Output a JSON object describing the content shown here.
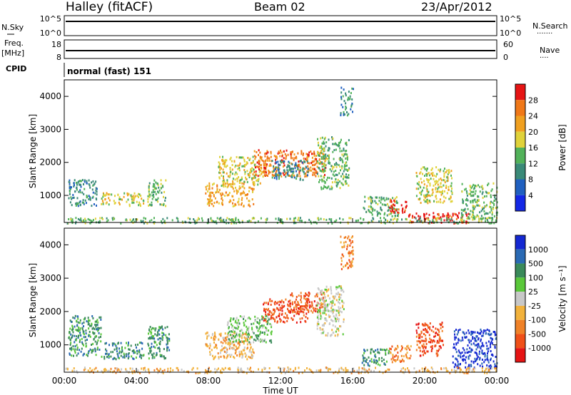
{
  "header": {
    "station": "Halley (fitACF)",
    "beam": "Beam 02",
    "date": "23/Apr/2012"
  },
  "strips": {
    "nsky_label": "N.Sky",
    "nsearch_label": "N.Search",
    "nsearch_dots": "·······",
    "nsky_ticks": [
      "10^5",
      "10^0"
    ],
    "nsearch_ticks": [
      "10^5",
      "10^0"
    ],
    "freq_label_1": "Freq.",
    "freq_label_2": "[MHz]",
    "freq_ticks": [
      "18",
      "8"
    ],
    "nave_label": "Nave",
    "nave_dots": "····",
    "nave_ticks": [
      "60",
      "0"
    ],
    "cpid_label": "CPID",
    "cpid_value": "normal (fast) 151"
  },
  "colors": {
    "power": [
      "#1428e6",
      "#2060c0",
      "#3a8a78",
      "#52b25a",
      "#e0d23a",
      "#f0a020",
      "#f07818",
      "#e61414"
    ],
    "velocity": [
      "#e61414",
      "#f05018",
      "#f08228",
      "#f2b23c",
      "#c8c8c8",
      "#5ac83a",
      "#3a8a5a",
      "#2a6ab4",
      "#1428d2"
    ]
  },
  "chart_data": [
    {
      "type": "heatmap",
      "quantity": "power",
      "xlabel": "",
      "ylabel": "Slant Range [km]",
      "colorbar_label": "Power [dB]",
      "colorbar_ticks": [
        "28",
        "24",
        "20",
        "16",
        "12",
        "8",
        "4"
      ],
      "x_ticks": [
        "00:00",
        "04:00",
        "08:00",
        "12:00",
        "16:00",
        "20:00",
        "00:00"
      ],
      "y_ticks": [
        "4000",
        "3000",
        "2000",
        "1000"
      ],
      "xlim_hours": [
        0,
        24
      ],
      "ylim_km": [
        180,
        4500
      ],
      "patches": [
        {
          "t0": 0.2,
          "t1": 1.8,
          "r0": 700,
          "r1": 1500,
          "level": 2
        },
        {
          "t0": 2.0,
          "t1": 4.4,
          "r0": 700,
          "r1": 1100,
          "level": 4
        },
        {
          "t0": 4.6,
          "t1": 5.6,
          "r0": 700,
          "r1": 1500,
          "level": 3
        },
        {
          "t0": 7.8,
          "t1": 10.5,
          "r0": 700,
          "r1": 1400,
          "level": 5
        },
        {
          "t0": 8.5,
          "t1": 11.0,
          "r0": 1300,
          "r1": 2200,
          "level": 4
        },
        {
          "t0": 10.5,
          "t1": 14.5,
          "r0": 1600,
          "r1": 2400,
          "level": 6
        },
        {
          "t0": 11.5,
          "t1": 13.5,
          "r0": 1500,
          "r1": 2100,
          "level": 2
        },
        {
          "t0": 14.0,
          "t1": 15.8,
          "r0": 1200,
          "r1": 2800,
          "level": 3
        },
        {
          "t0": 15.3,
          "t1": 16.0,
          "r0": 3400,
          "r1": 4300,
          "level": 2
        },
        {
          "t0": 16.5,
          "t1": 18.5,
          "r0": 400,
          "r1": 1000,
          "level": 3
        },
        {
          "t0": 18.0,
          "t1": 19.0,
          "r0": 500,
          "r1": 900,
          "level": 7
        },
        {
          "t0": 19.0,
          "t1": 22.5,
          "r0": 180,
          "r1": 500,
          "level": 7
        },
        {
          "t0": 19.5,
          "t1": 21.5,
          "r0": 800,
          "r1": 1900,
          "level": 4
        },
        {
          "t0": 22.0,
          "t1": 24.0,
          "r0": 300,
          "r1": 1400,
          "level": 3
        },
        {
          "t0": 0.0,
          "t1": 24.0,
          "r0": 180,
          "r1": 350,
          "level": 3
        }
      ]
    },
    {
      "type": "heatmap",
      "quantity": "velocity",
      "xlabel": "Time UT",
      "ylabel": "Slant Range [km]",
      "colorbar_label": "Velocity [m s⁻¹]",
      "colorbar_ticks": [
        "1000",
        "500",
        "100",
        "25",
        "-25",
        "-100",
        "-500",
        "-1000"
      ],
      "x_ticks": [
        "00:00",
        "04:00",
        "08:00",
        "12:00",
        "16:00",
        "20:00",
        "00:00"
      ],
      "y_ticks": [
        "4000",
        "3000",
        "2000",
        "1000"
      ],
      "xlim_hours": [
        0,
        24
      ],
      "ylim_km": [
        180,
        4500
      ],
      "patches": [
        {
          "t0": 0.2,
          "t1": 2.0,
          "r0": 700,
          "r1": 1900,
          "level": 6
        },
        {
          "t0": 2.0,
          "t1": 4.4,
          "r0": 600,
          "r1": 1100,
          "level": 6
        },
        {
          "t0": 4.6,
          "t1": 5.8,
          "r0": 600,
          "r1": 1600,
          "level": 6
        },
        {
          "t0": 7.8,
          "t1": 10.5,
          "r0": 600,
          "r1": 1400,
          "level": 3
        },
        {
          "t0": 9.0,
          "t1": 11.5,
          "r0": 1100,
          "r1": 1900,
          "level": 5
        },
        {
          "t0": 11.0,
          "t1": 13.5,
          "r0": 1700,
          "r1": 2400,
          "level": 1
        },
        {
          "t0": 12.5,
          "t1": 14.5,
          "r0": 2000,
          "r1": 2600,
          "level": 1
        },
        {
          "t0": 14.0,
          "t1": 15.5,
          "r0": 1300,
          "r1": 2800,
          "level": 4
        },
        {
          "t0": 15.3,
          "t1": 16.0,
          "r0": 3300,
          "r1": 4300,
          "level": 2
        },
        {
          "t0": 16.5,
          "t1": 18.0,
          "r0": 400,
          "r1": 900,
          "level": 6
        },
        {
          "t0": 18.0,
          "t1": 19.2,
          "r0": 500,
          "r1": 1000,
          "level": 2
        },
        {
          "t0": 19.5,
          "t1": 21.0,
          "r0": 700,
          "r1": 1700,
          "level": 1
        },
        {
          "t0": 21.5,
          "t1": 24.0,
          "r0": 300,
          "r1": 1500,
          "level": 8
        },
        {
          "t0": 0.0,
          "t1": 24.0,
          "r0": 180,
          "r1": 350,
          "level": 3
        }
      ]
    }
  ]
}
